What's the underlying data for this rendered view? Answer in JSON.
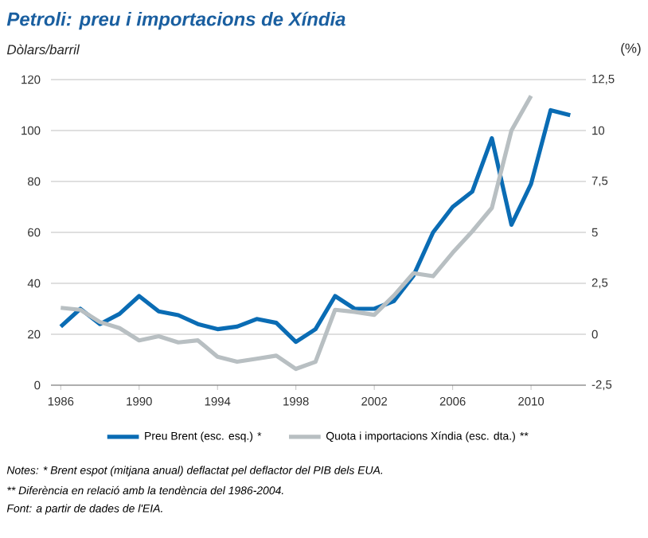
{
  "chart_data": {
    "type": "line",
    "title": "Petroli: preu i importacions de Xíndia",
    "ylabel": "Dòlars/barril",
    "y2label": "(%)",
    "x": [
      1986,
      1987,
      1988,
      1989,
      1990,
      1991,
      1992,
      1993,
      1994,
      1995,
      1996,
      1997,
      1998,
      1999,
      2000,
      2001,
      2002,
      2003,
      2004,
      2005,
      2006,
      2007,
      2008,
      2009,
      2010,
      2011,
      2012
    ],
    "series": [
      {
        "name": "Preu Brent (esc. esq.) *",
        "color": "#0a6cb4",
        "values": [
          23,
          30,
          24,
          28,
          35,
          29,
          27.5,
          24,
          22,
          23,
          26,
          24.5,
          17,
          22,
          35,
          30,
          30,
          33,
          43,
          60,
          70,
          76,
          97,
          63,
          79,
          108,
          106
        ]
      },
      {
        "name": "Quota i importacions Xíndia (esc. dta.) **",
        "color": "#b8bfc2",
        "axis": "y2",
        "values": [
          1.3,
          1.2,
          0.6,
          0.3,
          -0.3,
          -0.1,
          -0.4,
          -0.3,
          -1.1,
          -1.35,
          -1.2,
          -1.05,
          -1.7,
          -1.35,
          1.2,
          1.1,
          0.95,
          1.9,
          3,
          2.85,
          4,
          5.05,
          6.2,
          10,
          11.7,
          null,
          null
        ]
      }
    ],
    "xlim": [
      1985.5,
      2012.8
    ],
    "xticks": [
      1986,
      1990,
      1994,
      1998,
      2002,
      2006,
      2010
    ],
    "ylim": [
      0,
      120
    ],
    "yticks": [
      0,
      20,
      40,
      60,
      80,
      100,
      120
    ],
    "y2lim": [
      -2.5,
      12.5
    ],
    "y2ticks": [
      {
        "value": -2.5,
        "label": "-2,5"
      },
      0,
      {
        "value": 2.5,
        "label": "2,5"
      },
      5,
      {
        "value": 7.5,
        "label": "7,5"
      },
      10,
      {
        "value": 12.5,
        "label": "12,5"
      }
    ],
    "grid": "y",
    "legend": "bottom",
    "annotations": [
      "Notes: * Brent espot (mitjana anual) deflactat pel deflactor del PIB dels EUA.",
      "** Diferència en relació amb la tendència del 1986-2004.",
      "Font: a partir de dades de l'EIA."
    ]
  }
}
